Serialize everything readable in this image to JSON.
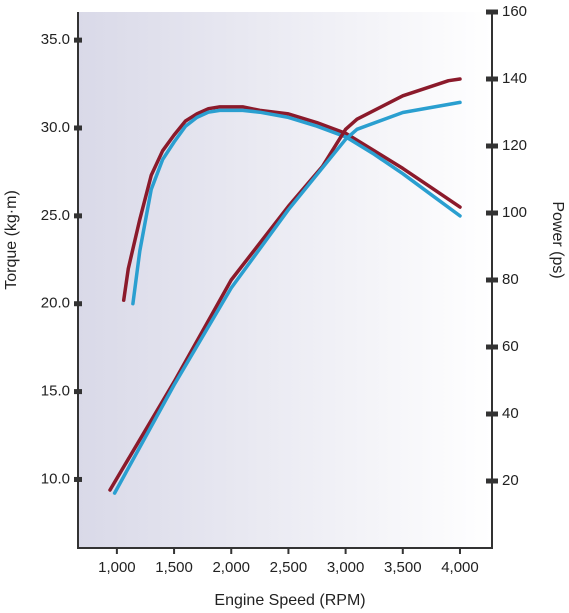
{
  "chart_data": {
    "type": "line",
    "ylabel": "Torque (kg·m)",
    "y2label": "Power (ps)",
    "xlabel": "Engine Speed (RPM)",
    "xlim": [
      660,
      4280
    ],
    "xticks": [
      {
        "value": 1000,
        "label": "1,000"
      },
      {
        "value": 1500,
        "label": "1,500"
      },
      {
        "value": 2000,
        "label": "2,000"
      },
      {
        "value": 2500,
        "label": "2,500"
      },
      {
        "value": 3000,
        "label": "3,000"
      },
      {
        "value": 3500,
        "label": "3,500"
      },
      {
        "value": 4000,
        "label": "4,000"
      }
    ],
    "ylim": [
      6.1,
      36.6
    ],
    "yticks": [
      {
        "value": 10,
        "label": "10.0"
      },
      {
        "value": 15,
        "label": "15.0"
      },
      {
        "value": 20,
        "label": "20.0"
      },
      {
        "value": 25,
        "label": "25.0"
      },
      {
        "value": 30,
        "label": "30.0"
      },
      {
        "value": 35,
        "label": "35.0"
      }
    ],
    "y2lim": [
      0,
      160
    ],
    "y2ticks": [
      20,
      40,
      60,
      80,
      100,
      120,
      140,
      160
    ],
    "series": [
      {
        "color": "#8b1a2b",
        "x": [
          1060,
          1100,
          1200,
          1300,
          1400,
          1500,
          1600,
          1700,
          1800,
          1900,
          2000,
          2100,
          2250,
          2500,
          2750,
          3000,
          3250,
          3500,
          3750,
          4000
        ],
        "values": [
          20.2,
          22.0,
          24.8,
          27.3,
          28.7,
          29.6,
          30.4,
          30.8,
          31.1,
          31.2,
          31.2,
          31.2,
          31.0,
          30.8,
          30.3,
          29.7,
          28.7,
          27.7,
          26.6,
          25.5
        ]
      },
      {
        "color": "#2a9fd0",
        "x": [
          1140,
          1200,
          1300,
          1400,
          1500,
          1600,
          1700,
          1800,
          1900,
          2000,
          2100,
          2250,
          2500,
          2750,
          3000,
          3250,
          3500,
          3750,
          4000
        ],
        "values": [
          20.0,
          23.0,
          26.5,
          28.2,
          29.2,
          30.1,
          30.6,
          30.9,
          31.0,
          31.0,
          31.0,
          30.9,
          30.6,
          30.1,
          29.5,
          28.5,
          27.4,
          26.2,
          25.0
        ]
      },
      {
        "color": "#8b1a2b",
        "axis": "y2",
        "x": [
          940,
          1500,
          2000,
          2500,
          2800,
          3000,
          3100,
          3500,
          3900,
          4000
        ],
        "values": [
          17.3,
          49.6,
          80,
          102,
          114,
          125,
          128,
          135,
          139.5,
          140
        ]
      },
      {
        "color": "#2a9fd0",
        "axis": "y2",
        "x": [
          980,
          1500,
          2000,
          2500,
          3000,
          3100,
          3500,
          4000
        ],
        "values": [
          16.4,
          48.7,
          77.6,
          101,
          122,
          125,
          130,
          133
        ]
      }
    ]
  }
}
